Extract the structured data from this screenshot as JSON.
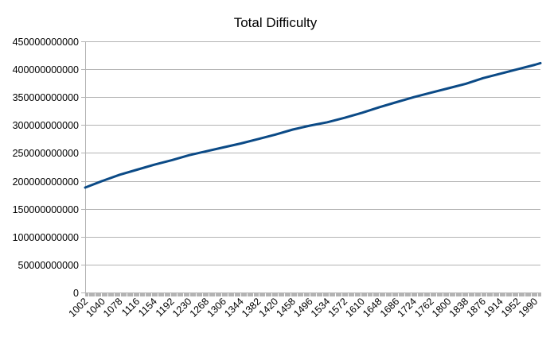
{
  "chart_data": {
    "type": "line",
    "title": "Total Difficulty",
    "xlabel": "",
    "ylabel": "",
    "xlim": [
      1002,
      2002
    ],
    "ylim": [
      0,
      450000000000
    ],
    "y_ticks": [
      0,
      50000000000,
      100000000000,
      150000000000,
      200000000000,
      250000000000,
      300000000000,
      350000000000,
      400000000000,
      450000000000
    ],
    "y_tick_labels": [
      "0",
      "50000000000",
      "100000000000",
      "150000000000",
      "200000000000",
      "250000000000",
      "300000000000",
      "350000000000",
      "400000000000",
      "450000000000"
    ],
    "x_tick_labels": [
      "1002",
      "1040",
      "1078",
      "1116",
      "1154",
      "1192",
      "1230",
      "1268",
      "1306",
      "1344",
      "1382",
      "1420",
      "1458",
      "1496",
      "1534",
      "1572",
      "1610",
      "1648",
      "1686",
      "1724",
      "1762",
      "1800",
      "1838",
      "1876",
      "1914",
      "1952",
      "1990"
    ],
    "grid": "horizontal",
    "legend": "none",
    "series": [
      {
        "color": "#0b4a86",
        "x": [
          1002,
          1040,
          1078,
          1116,
          1154,
          1192,
          1230,
          1268,
          1306,
          1344,
          1382,
          1420,
          1458,
          1496,
          1534,
          1572,
          1610,
          1648,
          1686,
          1724,
          1762,
          1800,
          1838,
          1876,
          1914,
          1952,
          1990,
          2002
        ],
        "values": [
          188000000000,
          200000000000,
          211000000000,
          220000000000,
          229000000000,
          237000000000,
          246000000000,
          253000000000,
          260000000000,
          267000000000,
          275000000000,
          283000000000,
          292000000000,
          299000000000,
          305000000000,
          313000000000,
          322000000000,
          332000000000,
          341000000000,
          350000000000,
          358000000000,
          366000000000,
          374000000000,
          384000000000,
          392000000000,
          400000000000,
          408000000000,
          411000000000
        ]
      }
    ]
  }
}
